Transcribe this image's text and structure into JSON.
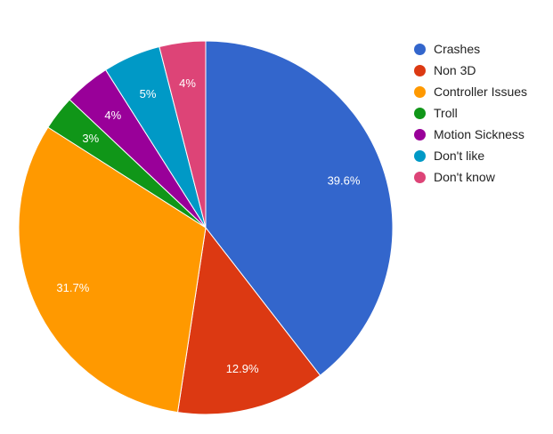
{
  "chart_data": {
    "type": "pie",
    "title": "",
    "legend_position": "right",
    "slices": [
      {
        "name": "Crashes",
        "value": 39.6,
        "label": "39.6%",
        "color": "#3366cc"
      },
      {
        "name": "Non 3D",
        "value": 12.9,
        "label": "12.9%",
        "color": "#dc3912"
      },
      {
        "name": "Controller Issues",
        "value": 31.7,
        "label": "31.7%",
        "color": "#ff9900"
      },
      {
        "name": "Troll",
        "value": 3,
        "label": "3%",
        "color": "#109618"
      },
      {
        "name": "Motion Sickness",
        "value": 4,
        "label": "4%",
        "color": "#990099"
      },
      {
        "name": "Don't like",
        "value": 5,
        "label": "5%",
        "color": "#0099c6"
      },
      {
        "name": "Don't know",
        "value": 4,
        "label": "4%",
        "color": "#dd4477"
      }
    ]
  }
}
